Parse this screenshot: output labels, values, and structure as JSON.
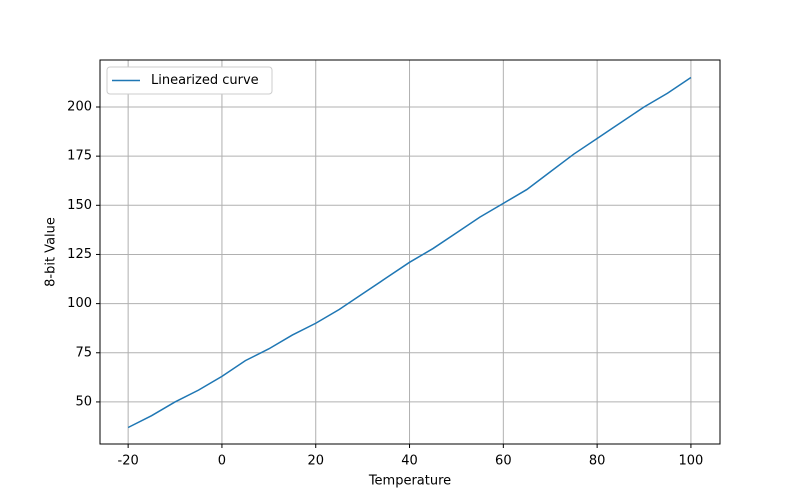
{
  "chart_data": {
    "type": "line",
    "x": [
      -20,
      -15,
      -10,
      -5,
      0,
      5,
      10,
      15,
      20,
      25,
      30,
      35,
      40,
      45,
      50,
      55,
      60,
      65,
      70,
      75,
      80,
      85,
      90,
      95,
      100
    ],
    "series": [
      {
        "name": "Linearized curve",
        "color": "#1f77b4",
        "values": [
          37,
          43,
          50,
          56,
          63,
          71,
          77,
          84,
          90,
          97,
          105,
          113,
          121,
          128,
          136,
          144,
          151,
          158,
          167,
          176,
          184,
          192,
          200,
          207,
          215
        ]
      }
    ],
    "x_label": "Temperature",
    "y_label": "8-bit Value",
    "xlim": [
      -26,
      106.2
    ],
    "ylim": [
      28.6,
      223.9
    ],
    "xticks": [
      -20,
      0,
      20,
      40,
      60,
      80,
      100
    ],
    "yticks": [
      50,
      75,
      100,
      125,
      150,
      175,
      200
    ],
    "grid": true,
    "legend": "upper-left"
  }
}
